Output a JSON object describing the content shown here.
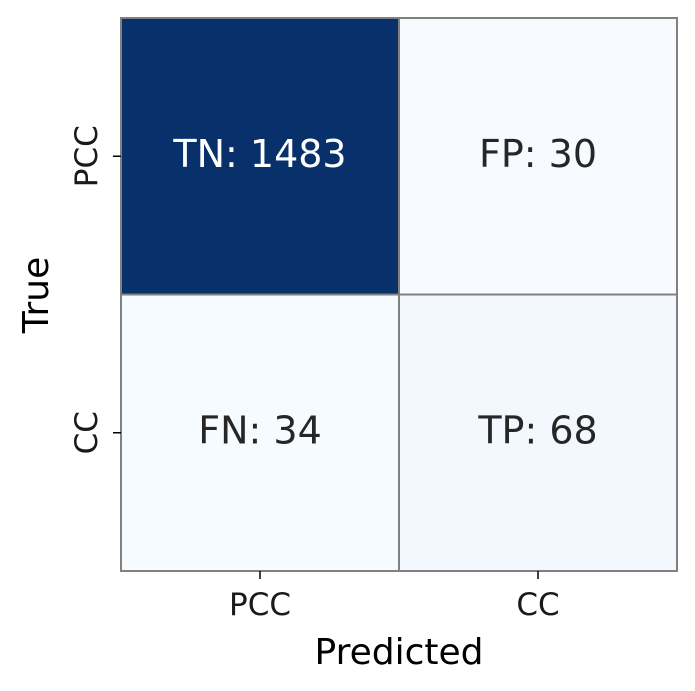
{
  "chart_data": {
    "type": "heatmap",
    "title": "",
    "xlabel": "Predicted",
    "ylabel": "True",
    "x_categories": [
      "PCC",
      "CC"
    ],
    "y_categories": [
      "PCC",
      "CC"
    ],
    "cells": [
      {
        "row": 0,
        "col": 0,
        "label": "TN: 1483",
        "value": 1483
      },
      {
        "row": 0,
        "col": 1,
        "label": "FP: 30",
        "value": 30
      },
      {
        "row": 1,
        "col": 0,
        "label": "FN: 34",
        "value": 34
      },
      {
        "row": 1,
        "col": 1,
        "label": "TP: 68",
        "value": 68
      }
    ],
    "colormap": "Blues",
    "colors": {
      "min": "#f7fbff",
      "max": "#08306b",
      "cell_border": "#808080",
      "text_dark": "#262626",
      "text_light": "#ffffff"
    },
    "colorbar": false
  }
}
